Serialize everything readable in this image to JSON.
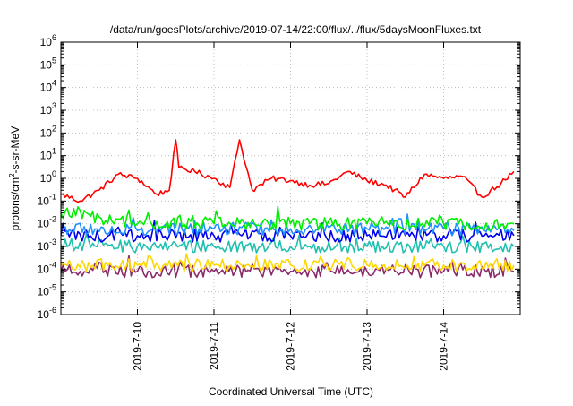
{
  "chart_data": {
    "type": "line",
    "title": "/data/run/goesPlots/archive/2019-07-14/22:00/flux/../flux/5daysMoonFluxes.txt",
    "xlabel": "Coordinated Universal Time (UTC)",
    "ylabel": {
      "main": "protons/cm",
      "sup": "2",
      "rest": "-s-sr-MeV"
    },
    "yscale": "log",
    "ylim": [
      1e-06,
      1000000.0
    ],
    "xlim": [
      "2019-07-09T00:00",
      "2019-07-15T00:00"
    ],
    "grid": true,
    "x_ticks": [
      "2019-7-10",
      "2019-7-11",
      "2019-7-12",
      "2019-7-13",
      "2019-7-14"
    ],
    "y_ticks": [
      {
        "exp": "-6"
      },
      {
        "exp": "-5"
      },
      {
        "exp": "-4"
      },
      {
        "exp": "-3"
      },
      {
        "exp": "-2"
      },
      {
        "exp": "-1"
      },
      {
        "exp": "0"
      },
      {
        "exp": "1"
      },
      {
        "exp": "2"
      },
      {
        "exp": "3"
      },
      {
        "exp": "4"
      },
      {
        "exp": "5"
      },
      {
        "exp": "6"
      }
    ],
    "y_tick_base": "10",
    "series": [
      {
        "color": "#ff0000",
        "x": [
          "2019-07-09T00:00",
          "2019-07-09T06:00",
          "2019-07-09T12:00",
          "2019-07-09T18:00",
          "2019-07-10T00:00",
          "2019-07-10T06:00",
          "2019-07-10T10:00",
          "2019-07-10T12:00",
          "2019-07-10T13:00",
          "2019-07-10T18:00",
          "2019-07-11T00:00",
          "2019-07-11T05:00",
          "2019-07-11T08:00",
          "2019-07-11T12:00",
          "2019-07-11T18:00",
          "2019-07-12T00:00",
          "2019-07-12T06:00",
          "2019-07-12T12:00",
          "2019-07-12T18:00",
          "2019-07-13T00:00",
          "2019-07-13T06:00",
          "2019-07-13T12:00",
          "2019-07-13T18:00",
          "2019-07-14T00:00",
          "2019-07-14T06:00",
          "2019-07-14T12:00",
          "2019-07-14T18:00",
          "2019-07-14T22:00"
        ],
        "y": [
          0.2,
          0.1,
          0.3,
          1.5,
          1.0,
          0.2,
          0.3,
          50,
          3,
          2,
          1.0,
          0.4,
          50,
          0.3,
          1.0,
          0.8,
          0.5,
          0.6,
          2.0,
          0.8,
          0.5,
          0.15,
          1.5,
          1.0,
          1.2,
          0.15,
          0.6,
          2.0
        ]
      },
      {
        "color": "#00ee00",
        "x": [
          "2019-07-09T00:00",
          "2019-07-10T00:00",
          "2019-07-11T00:00",
          "2019-07-12T00:00",
          "2019-07-13T00:00",
          "2019-07-14T00:00",
          "2019-07-14T22:00"
        ],
        "y": [
          0.03,
          0.01,
          0.01,
          0.01,
          0.01,
          0.01,
          0.01
        ]
      },
      {
        "color": "#1e90ff",
        "x": [
          "2019-07-09T00:00",
          "2019-07-10T00:00",
          "2019-07-11T00:00",
          "2019-07-12T00:00",
          "2019-07-13T00:00",
          "2019-07-14T00:00",
          "2019-07-14T22:00"
        ],
        "y": [
          0.006,
          0.005,
          0.006,
          0.006,
          0.006,
          0.006,
          0.005
        ]
      },
      {
        "color": "#0000ee",
        "x": [
          "2019-07-09T00:00",
          "2019-07-10T00:00",
          "2019-07-11T00:00",
          "2019-07-12T00:00",
          "2019-07-13T00:00",
          "2019-07-14T00:00",
          "2019-07-14T22:00"
        ],
        "y": [
          0.003,
          0.003,
          0.003,
          0.003,
          0.003,
          0.003,
          0.003
        ]
      },
      {
        "color": "#20c0b0",
        "x": [
          "2019-07-09T00:00",
          "2019-07-10T00:00",
          "2019-07-11T00:00",
          "2019-07-12T00:00",
          "2019-07-13T00:00",
          "2019-07-14T00:00",
          "2019-07-14T22:00"
        ],
        "y": [
          0.0012,
          0.001,
          0.001,
          0.001,
          0.001,
          0.001,
          0.001
        ]
      },
      {
        "color": "#ffd700",
        "x": [
          "2019-07-09T00:00",
          "2019-07-10T00:00",
          "2019-07-11T00:00",
          "2019-07-12T00:00",
          "2019-07-13T00:00",
          "2019-07-14T00:00",
          "2019-07-14T22:00"
        ],
        "y": [
          0.00015,
          0.00015,
          0.00015,
          0.00015,
          0.00015,
          0.00015,
          0.00015
        ]
      },
      {
        "color": "#8b2a6b",
        "x": [
          "2019-07-09T00:00",
          "2019-07-10T00:00",
          "2019-07-11T00:00",
          "2019-07-12T00:00",
          "2019-07-13T00:00",
          "2019-07-14T00:00",
          "2019-07-14T22:00"
        ],
        "y": [
          8e-05,
          8e-05,
          8e-05,
          8e-05,
          8e-05,
          8e-05,
          8e-05
        ]
      }
    ]
  }
}
